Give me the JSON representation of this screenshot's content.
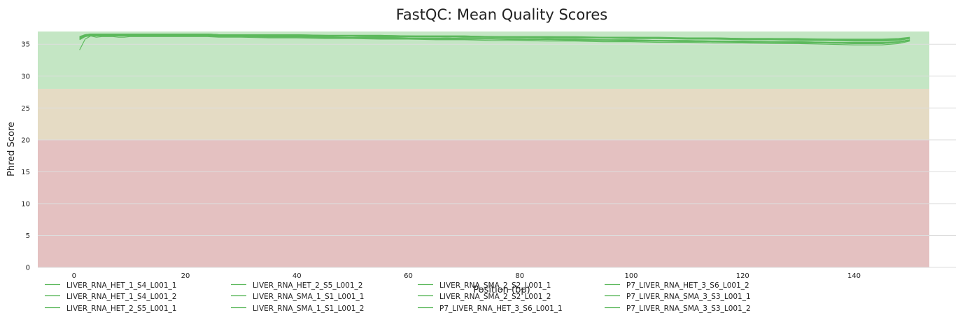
{
  "chart_data": {
    "type": "line",
    "title": "FastQC: Mean Quality Scores",
    "xlabel": "Position (bp)",
    "ylabel": "Phred Score",
    "xlim": [
      -6.5,
      153.5
    ],
    "ylim": [
      0,
      37
    ],
    "xticks": [
      0,
      20,
      40,
      60,
      80,
      100,
      120,
      140
    ],
    "yticks": [
      0,
      5,
      10,
      15,
      20,
      25,
      30,
      35
    ],
    "grid": "horizontal",
    "legend_position": "bottom",
    "line_color": "#5cb85c",
    "bands": [
      {
        "from": 0,
        "to": 20,
        "color": "#e4c1c1"
      },
      {
        "from": 20,
        "to": 28,
        "color": "#e5dbc4"
      },
      {
        "from": 28,
        "to": 37,
        "color": "#c4e6c4"
      }
    ],
    "x": [
      1,
      2,
      3,
      4,
      5,
      6,
      7,
      8,
      9,
      10,
      12,
      14,
      16,
      18,
      20,
      22,
      24,
      26,
      28,
      30,
      35,
      40,
      45,
      50,
      55,
      60,
      65,
      70,
      75,
      80,
      85,
      90,
      95,
      100,
      105,
      110,
      115,
      120,
      125,
      130,
      135,
      140,
      145,
      148,
      150
    ],
    "series": [
      {
        "name": "LIVER_RNA_HET_1_S4_L001_1",
        "values": [
          36.2,
          36.5,
          36.6,
          36.6,
          36.6,
          36.6,
          36.6,
          36.6,
          36.6,
          36.6,
          36.6,
          36.6,
          36.6,
          36.6,
          36.6,
          36.6,
          36.6,
          36.5,
          36.5,
          36.5,
          36.5,
          36.5,
          36.4,
          36.4,
          36.4,
          36.3,
          36.3,
          36.3,
          36.2,
          36.2,
          36.2,
          36.1,
          36.1,
          36.1,
          36.0,
          36.0,
          36.0,
          35.9,
          35.9,
          35.8,
          35.8,
          35.7,
          35.7,
          35.8,
          36.0
        ]
      },
      {
        "name": "LIVER_RNA_HET_1_S4_L001_2",
        "values": [
          34.1,
          35.8,
          36.3,
          36.1,
          36.2,
          36.2,
          36.2,
          36.1,
          36.1,
          36.2,
          36.2,
          36.2,
          36.2,
          36.2,
          36.2,
          36.2,
          36.2,
          36.1,
          36.1,
          36.1,
          36.0,
          36.0,
          35.9,
          35.9,
          35.8,
          35.8,
          35.7,
          35.7,
          35.6,
          35.6,
          35.5,
          35.5,
          35.4,
          35.4,
          35.3,
          35.3,
          35.2,
          35.2,
          35.1,
          35.1,
          35.0,
          34.9,
          34.9,
          35.1,
          35.5
        ]
      },
      {
        "name": "LIVER_RNA_HET_2_S5_L001_1",
        "values": [
          36.1,
          36.4,
          36.5,
          36.5,
          36.5,
          36.5,
          36.5,
          36.5,
          36.5,
          36.5,
          36.5,
          36.5,
          36.5,
          36.5,
          36.5,
          36.5,
          36.5,
          36.4,
          36.4,
          36.4,
          36.4,
          36.3,
          36.3,
          36.3,
          36.2,
          36.2,
          36.2,
          36.1,
          36.1,
          36.1,
          36.0,
          36.0,
          36.0,
          35.9,
          35.9,
          35.8,
          35.8,
          35.7,
          35.7,
          35.6,
          35.6,
          35.5,
          35.5,
          35.6,
          35.9
        ]
      },
      {
        "name": "LIVER_RNA_HET_2_S5_L001_2",
        "values": [
          35.8,
          36.2,
          36.4,
          36.4,
          36.4,
          36.4,
          36.4,
          36.3,
          36.3,
          36.4,
          36.4,
          36.4,
          36.4,
          36.4,
          36.4,
          36.4,
          36.4,
          36.3,
          36.3,
          36.3,
          36.2,
          36.2,
          36.1,
          36.1,
          36.0,
          36.0,
          35.9,
          35.9,
          35.8,
          35.8,
          35.7,
          35.7,
          35.6,
          35.6,
          35.5,
          35.5,
          35.4,
          35.4,
          35.3,
          35.3,
          35.2,
          35.1,
          35.1,
          35.3,
          35.6
        ]
      },
      {
        "name": "LIVER_RNA_SMA_1_S1_L001_1",
        "values": [
          36.2,
          36.5,
          36.6,
          36.6,
          36.6,
          36.6,
          36.6,
          36.6,
          36.6,
          36.6,
          36.6,
          36.6,
          36.6,
          36.6,
          36.6,
          36.6,
          36.6,
          36.5,
          36.5,
          36.5,
          36.5,
          36.5,
          36.4,
          36.4,
          36.4,
          36.3,
          36.3,
          36.3,
          36.2,
          36.2,
          36.2,
          36.2,
          36.1,
          36.1,
          36.1,
          36.0,
          36.0,
          35.9,
          35.9,
          35.9,
          35.8,
          35.8,
          35.8,
          35.9,
          36.1
        ]
      },
      {
        "name": "LIVER_RNA_SMA_1_S1_L001_2",
        "values": [
          35.9,
          36.3,
          36.4,
          36.4,
          36.4,
          36.4,
          36.4,
          36.4,
          36.4,
          36.4,
          36.4,
          36.4,
          36.4,
          36.4,
          36.4,
          36.4,
          36.4,
          36.3,
          36.3,
          36.3,
          36.3,
          36.2,
          36.2,
          36.1,
          36.1,
          36.0,
          36.0,
          35.9,
          35.9,
          35.9,
          35.8,
          35.8,
          35.7,
          35.7,
          35.6,
          35.6,
          35.5,
          35.5,
          35.4,
          35.4,
          35.3,
          35.2,
          35.2,
          35.4,
          35.7
        ]
      },
      {
        "name": "LIVER_RNA_SMA_2_S2_L001_1",
        "values": [
          36.1,
          36.4,
          36.5,
          36.5,
          36.5,
          36.5,
          36.5,
          36.5,
          36.5,
          36.5,
          36.5,
          36.5,
          36.5,
          36.5,
          36.5,
          36.5,
          36.5,
          36.4,
          36.4,
          36.4,
          36.4,
          36.4,
          36.3,
          36.3,
          36.3,
          36.2,
          36.2,
          36.2,
          36.1,
          36.1,
          36.1,
          36.0,
          36.0,
          36.0,
          35.9,
          35.9,
          35.8,
          35.8,
          35.8,
          35.7,
          35.7,
          35.6,
          35.6,
          35.7,
          36.0
        ]
      },
      {
        "name": "LIVER_RNA_SMA_2_S2_L001_2",
        "values": [
          35.9,
          36.3,
          36.4,
          36.4,
          36.4,
          36.4,
          36.4,
          36.3,
          36.3,
          36.4,
          36.4,
          36.4,
          36.4,
          36.4,
          36.4,
          36.4,
          36.4,
          36.3,
          36.3,
          36.3,
          36.2,
          36.2,
          36.1,
          36.1,
          36.0,
          36.0,
          36.0,
          35.9,
          35.9,
          35.8,
          35.8,
          35.7,
          35.7,
          35.6,
          35.6,
          35.5,
          35.5,
          35.4,
          35.4,
          35.3,
          35.3,
          35.2,
          35.2,
          35.3,
          35.7
        ]
      },
      {
        "name": "P7_LIVER_RNA_HET_3_S6_L001_1",
        "values": [
          36.0,
          36.4,
          36.5,
          36.5,
          36.5,
          36.5,
          36.5,
          36.5,
          36.5,
          36.5,
          36.5,
          36.5,
          36.5,
          36.5,
          36.5,
          36.5,
          36.5,
          36.4,
          36.4,
          36.4,
          36.4,
          36.3,
          36.3,
          36.3,
          36.2,
          36.2,
          36.2,
          36.1,
          36.1,
          36.1,
          36.0,
          36.0,
          36.0,
          35.9,
          35.9,
          35.9,
          35.8,
          35.8,
          35.7,
          35.7,
          35.6,
          35.6,
          35.6,
          35.7,
          35.9
        ]
      },
      {
        "name": "P7_LIVER_RNA_HET_3_S6_L001_2",
        "values": [
          35.7,
          36.2,
          36.3,
          36.3,
          36.3,
          36.3,
          36.3,
          36.3,
          36.3,
          36.3,
          36.3,
          36.3,
          36.3,
          36.3,
          36.3,
          36.3,
          36.3,
          36.2,
          36.2,
          36.2,
          36.1,
          36.1,
          36.0,
          36.0,
          35.9,
          35.9,
          35.8,
          35.8,
          35.8,
          35.7,
          35.7,
          35.6,
          35.6,
          35.5,
          35.5,
          35.4,
          35.4,
          35.3,
          35.3,
          35.2,
          35.2,
          35.1,
          35.1,
          35.3,
          35.6
        ]
      },
      {
        "name": "P7_LIVER_RNA_SMA_3_S3_L001_1",
        "values": [
          36.1,
          36.5,
          36.6,
          36.6,
          36.6,
          36.6,
          36.6,
          36.6,
          36.6,
          36.6,
          36.6,
          36.6,
          36.6,
          36.6,
          36.6,
          36.6,
          36.6,
          36.5,
          36.5,
          36.5,
          36.4,
          36.4,
          36.4,
          36.3,
          36.3,
          36.3,
          36.2,
          36.2,
          36.2,
          36.1,
          36.1,
          36.1,
          36.0,
          36.0,
          36.0,
          35.9,
          35.9,
          35.9,
          35.8,
          35.8,
          35.8,
          35.7,
          35.7,
          35.8,
          36.0
        ]
      },
      {
        "name": "P7_LIVER_RNA_SMA_3_S3_L001_2",
        "values": [
          35.8,
          36.3,
          36.4,
          36.4,
          36.4,
          36.4,
          36.4,
          36.4,
          36.4,
          36.4,
          36.4,
          36.4,
          36.4,
          36.4,
          36.4,
          36.4,
          36.4,
          36.3,
          36.3,
          36.3,
          36.2,
          36.2,
          36.1,
          36.1,
          36.1,
          36.0,
          36.0,
          35.9,
          35.9,
          35.8,
          35.8,
          35.7,
          35.7,
          35.7,
          35.6,
          35.6,
          35.5,
          35.5,
          35.4,
          35.4,
          35.3,
          35.3,
          35.3,
          35.4,
          35.7
        ]
      }
    ]
  }
}
